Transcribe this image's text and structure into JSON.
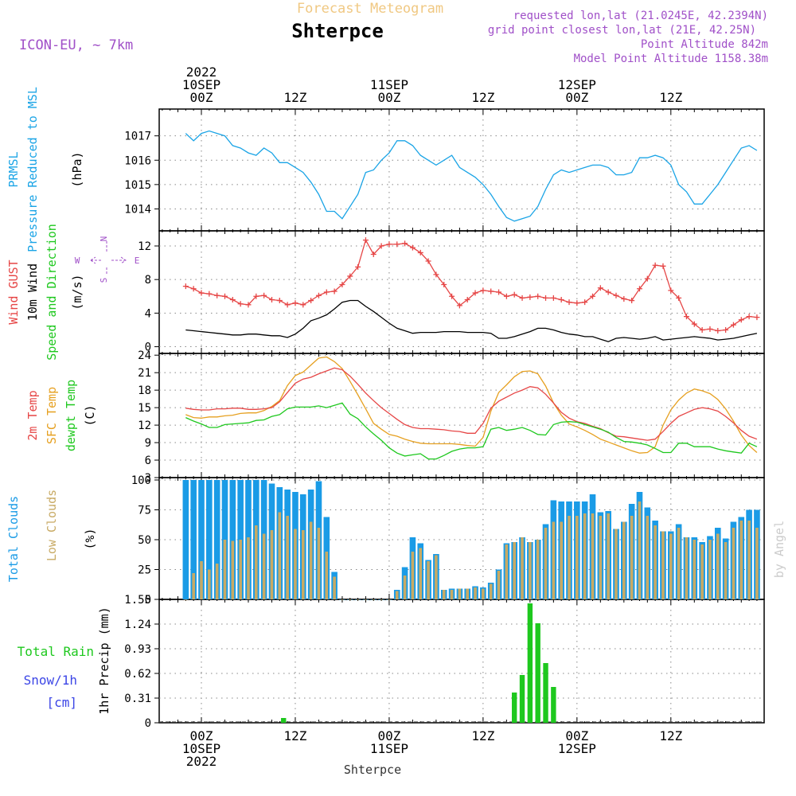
{
  "header": {
    "title": "Forecast Meteogram",
    "location": "Shterpce",
    "model": "ICON-EU, ~ 7km",
    "info_lines": [
      "requested lon,lat (21.0245E, 42.2394N)",
      "grid point closest lon,lat (21E, 42.25N)",
      "Point Altitude 842m",
      "Model Point Altitude 1158.38m"
    ],
    "credit": "by Angel",
    "footer_location": "Shterpce"
  },
  "time_axis": {
    "top_labels": [
      {
        "i": 0,
        "lines": [
          "2022",
          "10SEP",
          "00Z"
        ]
      },
      {
        "i": 12,
        "lines": [
          "12Z"
        ]
      },
      {
        "i": 24,
        "lines": [
          "11SEP",
          "00Z"
        ]
      },
      {
        "i": 36,
        "lines": [
          "12Z"
        ]
      },
      {
        "i": 48,
        "lines": [
          "12SEP",
          "00Z"
        ]
      },
      {
        "i": 60,
        "lines": [
          "12Z"
        ]
      }
    ],
    "bottom_labels": [
      {
        "i": 0,
        "lines": [
          "00Z",
          "10SEP",
          "2022"
        ]
      },
      {
        "i": 12,
        "lines": [
          "12Z"
        ]
      },
      {
        "i": 24,
        "lines": [
          "00Z",
          "11SEP"
        ]
      },
      {
        "i": 36,
        "lines": [
          "12Z"
        ]
      },
      {
        "i": 48,
        "lines": [
          "00Z",
          "12SEP"
        ]
      },
      {
        "i": 60,
        "lines": [
          "12Z"
        ]
      }
    ]
  },
  "legend": {
    "ylabel_hpa": "(hPa)",
    "ylabel_ms": "(m/s)",
    "ylabel_c": "(C)",
    "ylabel_pct": "(%)",
    "prmsl": "PRMSL",
    "pressure_msl": "Pressure Reduced to MSL",
    "wind_gust": "Wind GUST",
    "wind_10m": "10m Wind",
    "speed_dir": "Speed and Direction",
    "compass_n": "N",
    "compass_s": "S",
    "compass_w": "W",
    "compass_e": "E",
    "temp_2m": "2m Temp",
    "temp_sfc": "SFC Temp",
    "temp_dew": "dewpt Temp",
    "total_clouds": "Total Clouds",
    "low_clouds": "Low Clouds",
    "total_rain": "Total  Rain",
    "snow_1h": "Snow/1h",
    "snow_unit": "[cm]",
    "precip_label": "1hr Precip (mm)"
  },
  "colors": {
    "pressure": "#1aa4e6",
    "gust": "#e64646",
    "wind": "#000000",
    "temp2m": "#e64646",
    "sfc": "#e6a020",
    "dew": "#1ec81e",
    "total_clouds": "#1a9be6",
    "low_clouds": "#c8aa64",
    "rain": "#1ec81e",
    "model_text": "#a050c8",
    "title_text": "#f0c882",
    "legend_blue": "#3c46e6",
    "credit": "#cccccc"
  },
  "chart_data": [
    {
      "type": "line",
      "name": "pressure",
      "ylabel": "(hPa)",
      "ylim": [
        1013.1,
        1018.1
      ],
      "ticks": [
        1014,
        1015,
        1016,
        1017
      ],
      "x_start": -2,
      "step": 1,
      "values": [
        1017.1,
        1016.8,
        1017.1,
        1017.2,
        1017.1,
        1017.0,
        1016.6,
        1016.5,
        1016.3,
        1016.2,
        1016.5,
        1016.3,
        1015.9,
        1015.9,
        1015.7,
        1015.5,
        1015.1,
        1014.6,
        1013.9,
        1013.9,
        1013.6,
        1014.1,
        1014.6,
        1015.5,
        1015.6,
        1016.0,
        1016.3,
        1016.8,
        1016.8,
        1016.6,
        1016.2,
        1016.0,
        1015.8,
        1016.0,
        1016.2,
        1015.7,
        1015.5,
        1015.3,
        1015.0,
        1014.6,
        1014.1,
        1013.65,
        1013.5,
        1013.6,
        1013.7,
        1014.1,
        1014.8,
        1015.4,
        1015.6,
        1015.5,
        1015.6,
        1015.7,
        1015.8,
        1015.8,
        1015.7,
        1015.4,
        1015.4,
        1015.5,
        1016.1,
        1016.1,
        1016.2,
        1016.1,
        1015.8,
        1015.0,
        1014.7,
        1014.2,
        1014.2,
        1014.6,
        1015.0,
        1015.5,
        1016.0,
        1016.5,
        1016.6,
        1016.4,
        1016.2
      ]
    },
    {
      "type": "line",
      "name": "wind",
      "ylabel": "(m/s)",
      "ylim": [
        -0.8,
        13.8
      ],
      "ticks": [
        0,
        4,
        8,
        12
      ],
      "x_start": -2,
      "step": 1,
      "gust": [
        7.2,
        6.9,
        6.4,
        6.3,
        6.1,
        6.0,
        5.6,
        5.1,
        5.0,
        6.0,
        6.1,
        5.6,
        5.5,
        5.0,
        5.2,
        5.0,
        5.5,
        6.1,
        6.5,
        6.6,
        7.4,
        8.4,
        9.5,
        12.7,
        11.0,
        12.0,
        12.2,
        12.2,
        12.3,
        11.8,
        11.2,
        10.2,
        8.6,
        7.4,
        6.0,
        4.9,
        5.6,
        6.4,
        6.7,
        6.6,
        6.5,
        6.0,
        6.2,
        5.8,
        5.9,
        6.0,
        5.8,
        5.8,
        5.6,
        5.3,
        5.2,
        5.3,
        6.0,
        7.0,
        6.5,
        6.1,
        5.7,
        5.5,
        6.9,
        8.1,
        9.7,
        9.6,
        6.7,
        5.8,
        3.6,
        2.7,
        2.0,
        2.1,
        1.9,
        2.0,
        2.6,
        3.2,
        3.6,
        3.5,
        3.0,
        2.3,
        2.4,
        2.4,
        2.6
      ],
      "speed": [
        2.0,
        1.9,
        1.8,
        1.7,
        1.6,
        1.5,
        1.4,
        1.4,
        1.5,
        1.5,
        1.4,
        1.3,
        1.3,
        1.1,
        1.5,
        2.2,
        3.1,
        3.4,
        3.8,
        4.5,
        5.3,
        5.5,
        5.5,
        4.8,
        4.2,
        3.5,
        2.8,
        2.2,
        1.9,
        1.6,
        1.7,
        1.7,
        1.7,
        1.8,
        1.8,
        1.8,
        1.7,
        1.7,
        1.7,
        1.6,
        1.0,
        1.0,
        1.2,
        1.5,
        1.8,
        2.2,
        2.2,
        2.0,
        1.7,
        1.5,
        1.4,
        1.2,
        1.2,
        0.9,
        0.6,
        1.0,
        1.1,
        1.0,
        0.9,
        1.0,
        1.2,
        0.8,
        0.9,
        1.0,
        1.1,
        1.2,
        1.1,
        1.0,
        0.8,
        0.9,
        1.0,
        1.2,
        1.4,
        1.6,
        1.5,
        1.2,
        1.0,
        0.8,
        0.6
      ]
    },
    {
      "type": "line",
      "name": "temperature",
      "ylabel": "(C)",
      "ylim": [
        3,
        24.3
      ],
      "ticks": [
        3,
        6,
        9,
        12,
        15,
        18,
        21,
        24
      ],
      "x_start": -2,
      "step": 1,
      "temp2m": [
        14.9,
        14.7,
        14.6,
        14.6,
        14.8,
        14.8,
        14.9,
        14.9,
        14.7,
        14.7,
        14.8,
        15.0,
        16.0,
        17.6,
        19.2,
        19.9,
        20.2,
        20.8,
        21.3,
        21.8,
        21.5,
        20.4,
        19.0,
        17.5,
        16.2,
        15.0,
        14.0,
        13.0,
        12.1,
        11.6,
        11.4,
        11.4,
        11.3,
        11.2,
        11.0,
        10.9,
        10.6,
        10.6,
        12.3,
        14.9,
        16.1,
        16.8,
        17.5,
        18.0,
        18.6,
        18.4,
        17.3,
        15.8,
        14.2,
        13.2,
        12.6,
        12.3,
        11.8,
        11.4,
        10.7,
        10.1,
        10.0,
        9.8,
        9.6,
        9.4,
        9.6,
        10.9,
        12.3,
        13.5,
        14.1,
        14.7,
        15.0,
        14.8,
        14.4,
        13.5,
        12.4,
        11.1,
        10.1,
        9.6,
        9.2,
        9.1
      ],
      "sfc": [
        13.8,
        13.3,
        13.2,
        13.4,
        13.4,
        13.6,
        13.7,
        14.0,
        14.1,
        14.1,
        14.5,
        15.2,
        16.2,
        18.8,
        20.5,
        21.1,
        22.3,
        23.5,
        23.7,
        22.9,
        21.7,
        19.5,
        17.2,
        14.8,
        12.3,
        11.3,
        10.4,
        10.1,
        9.6,
        9.2,
        8.9,
        8.8,
        8.8,
        8.8,
        8.8,
        8.7,
        8.5,
        8.4,
        9.9,
        14.4,
        17.6,
        18.9,
        20.3,
        21.2,
        21.3,
        20.8,
        18.7,
        15.8,
        13.7,
        12.2,
        11.7,
        11.1,
        10.4,
        9.6,
        9.1,
        8.6,
        8.1,
        7.6,
        7.2,
        7.3,
        8.3,
        12.0,
        14.6,
        16.3,
        17.5,
        18.2,
        17.9,
        17.4,
        16.4,
        14.8,
        12.7,
        10.3,
        8.5,
        7.3,
        6.7,
        6.0,
        5.3,
        4.6
      ],
      "dew": [
        13.3,
        12.7,
        12.2,
        11.6,
        11.6,
        12.1,
        12.2,
        12.3,
        12.4,
        12.8,
        12.9,
        13.5,
        13.8,
        14.8,
        15.1,
        15.1,
        15.1,
        15.3,
        15.0,
        15.4,
        15.8,
        13.9,
        13.1,
        11.7,
        10.5,
        9.4,
        8.1,
        7.2,
        6.7,
        6.9,
        7.1,
        6.2,
        6.2,
        6.8,
        7.5,
        7.9,
        8.1,
        8.1,
        8.3,
        11.3,
        11.6,
        11.1,
        11.3,
        11.6,
        11.1,
        10.4,
        10.3,
        12.1,
        12.5,
        12.6,
        12.5,
        12.1,
        11.7,
        11.3,
        10.8,
        9.9,
        9.2,
        9.1,
        8.9,
        8.6,
        8.0,
        7.3,
        7.3,
        8.9,
        8.9,
        8.3,
        8.3,
        8.3,
        7.9,
        7.6,
        7.4,
        7.2,
        8.9,
        8.3,
        8.0,
        7.7,
        7.3,
        6.8,
        6.2
      ]
    },
    {
      "type": "bar",
      "name": "clouds",
      "ylabel": "(%)",
      "ylim": [
        0,
        102
      ],
      "ticks": [
        0,
        25,
        50,
        75,
        100
      ],
      "x_start": -2,
      "step": 1,
      "total": [
        100,
        100,
        100,
        100,
        100,
        100,
        100,
        100,
        100,
        100,
        100,
        97,
        94,
        92,
        90,
        88,
        92,
        99,
        69,
        23,
        0,
        0,
        0,
        0,
        0,
        0,
        0,
        8,
        27,
        52,
        47,
        33,
        38,
        8,
        9,
        9,
        9,
        11,
        10,
        14,
        25,
        47,
        48,
        52,
        48,
        50,
        63,
        83,
        82,
        82,
        82,
        82,
        88,
        73,
        74,
        59,
        65,
        80,
        90,
        77,
        66,
        57,
        57,
        63,
        52,
        52,
        48,
        53,
        60,
        51,
        65,
        69,
        75,
        75,
        52,
        37,
        60,
        46,
        45,
        20
      ],
      "low": [
        0,
        22,
        32,
        25,
        30,
        50,
        49,
        50,
        52,
        62,
        55,
        58,
        73,
        70,
        59,
        58,
        65,
        60,
        40,
        19,
        0,
        0,
        0,
        0,
        0,
        0,
        0,
        7,
        20,
        40,
        43,
        32,
        37,
        8,
        8,
        9,
        9,
        10,
        9,
        13,
        24,
        46,
        48,
        52,
        48,
        50,
        60,
        65,
        65,
        70,
        70,
        72,
        72,
        70,
        72,
        59,
        65,
        70,
        82,
        70,
        62,
        57,
        55,
        60,
        52,
        50,
        46,
        50,
        55,
        48,
        60,
        66,
        66,
        60,
        49,
        35,
        53,
        44,
        43,
        20
      ]
    },
    {
      "type": "bar",
      "name": "precip",
      "ylabel": "1hr Precip (mm)",
      "ylim": [
        0,
        1.55
      ],
      "ticks": [
        0,
        0.31,
        0.62,
        0.93,
        1.24,
        1.55
      ],
      "bars": [
        {
          "i": 10.5,
          "v": 0.06
        },
        {
          "i": 40,
          "v": 0.38
        },
        {
          "i": 41,
          "v": 0.6
        },
        {
          "i": 42,
          "v": 1.5
        },
        {
          "i": 43,
          "v": 1.25
        },
        {
          "i": 44,
          "v": 0.75
        },
        {
          "i": 45,
          "v": 0.45
        }
      ]
    }
  ]
}
